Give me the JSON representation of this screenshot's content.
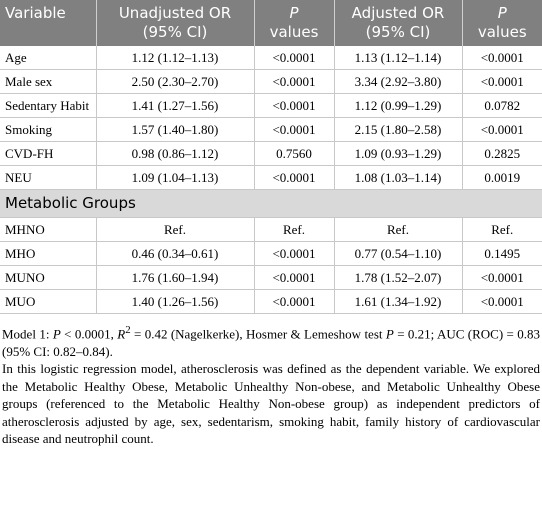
{
  "table": {
    "header": [
      {
        "text": "Variable"
      },
      {
        "text": "Unadjusted OR (95% CI)"
      },
      {
        "italic": "P",
        "text": "values"
      },
      {
        "text": "Adjusted OR (95% CI)"
      },
      {
        "italic": "P",
        "text": "values"
      }
    ],
    "rows": [
      [
        "Age",
        "1.12 (1.12–1.13)",
        "<0.0001",
        "1.13 (1.12–1.14)",
        "<0.0001"
      ],
      [
        "Male sex",
        "2.50 (2.30–2.70)",
        "<0.0001",
        "3.34 (2.92–3.80)",
        "<0.0001"
      ],
      [
        "Sedentary Habit",
        "1.41 (1.27–1.56)",
        "<0.0001",
        "1.12 (0.99–1.29)",
        "0.0782"
      ],
      [
        "Smoking",
        "1.57 (1.40–1.80)",
        "<0.0001",
        "2.15 (1.80–2.58)",
        "<0.0001"
      ],
      [
        "CVD-FH",
        "0.98 (0.86–1.12)",
        "0.7560",
        "1.09 (0.93–1.29)",
        "0.2825"
      ],
      [
        "NEU",
        "1.09 (1.04–1.13)",
        "<0.0001",
        "1.08 (1.03–1.14)",
        "0.0019"
      ]
    ],
    "section": "Metabolic Groups",
    "section_rows": [
      [
        "MHNO",
        "Ref.",
        "Ref.",
        "Ref.",
        "Ref."
      ],
      [
        "MHO",
        "0.46 (0.34–0.61)",
        "<0.0001",
        "0.77 (0.54–1.10)",
        "0.1495"
      ],
      [
        "MUNO",
        "1.76 (1.60–1.94)",
        "<0.0001",
        "1.78 (1.52–2.07)",
        "<0.0001"
      ],
      [
        "MUO",
        "1.40 (1.26–1.56)",
        "<0.0001",
        "1.61 (1.34–1.92)",
        "<0.0001"
      ]
    ]
  },
  "note": {
    "model": [
      "Model 1: ",
      "P",
      " < 0.0001, ",
      "R",
      "2",
      " = 0.42 (Nagelkerke), Hosmer & Lemeshow test ",
      "P",
      " = 0.21; AUC (ROC) = 0.83 (95% CI: 0.82–0.84)."
    ],
    "description": "In this logistic regression model, atherosclerosis was defined as the dependent variable. We explored the Metabolic Healthy Obese, Metabolic Unhealthy Non-obese, and Metabolic Unhealthy Obese groups (referenced to the Metabolic Healthy Non-obese group) as independent predictors of atherosclerosis adjusted by age, sex, sedentarism, smoking habit, family history of cardiovascular disease and neutrophil count."
  }
}
